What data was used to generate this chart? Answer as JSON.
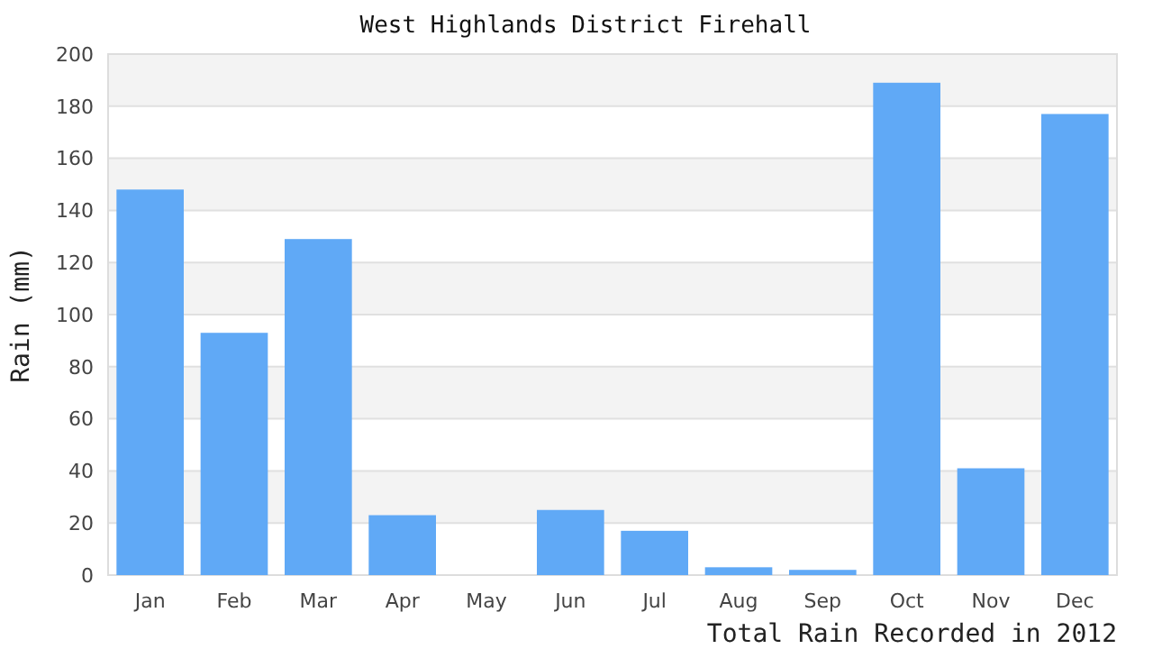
{
  "chart_data": {
    "type": "bar",
    "title": "West Highlands District Firehall",
    "xlabel": "Total Rain Recorded in 2012",
    "ylabel": "Rain (mm)",
    "categories": [
      "Jan",
      "Feb",
      "Mar",
      "Apr",
      "May",
      "Jun",
      "Jul",
      "Aug",
      "Sep",
      "Oct",
      "Nov",
      "Dec"
    ],
    "values": [
      148,
      93,
      129,
      23,
      0,
      25,
      17,
      3,
      2,
      189,
      41,
      177
    ],
    "color": "#60a9f6",
    "ylim": [
      0,
      200
    ],
    "yticks": [
      0,
      20,
      40,
      60,
      80,
      100,
      120,
      140,
      160,
      180,
      200
    ],
    "grid": "y"
  }
}
